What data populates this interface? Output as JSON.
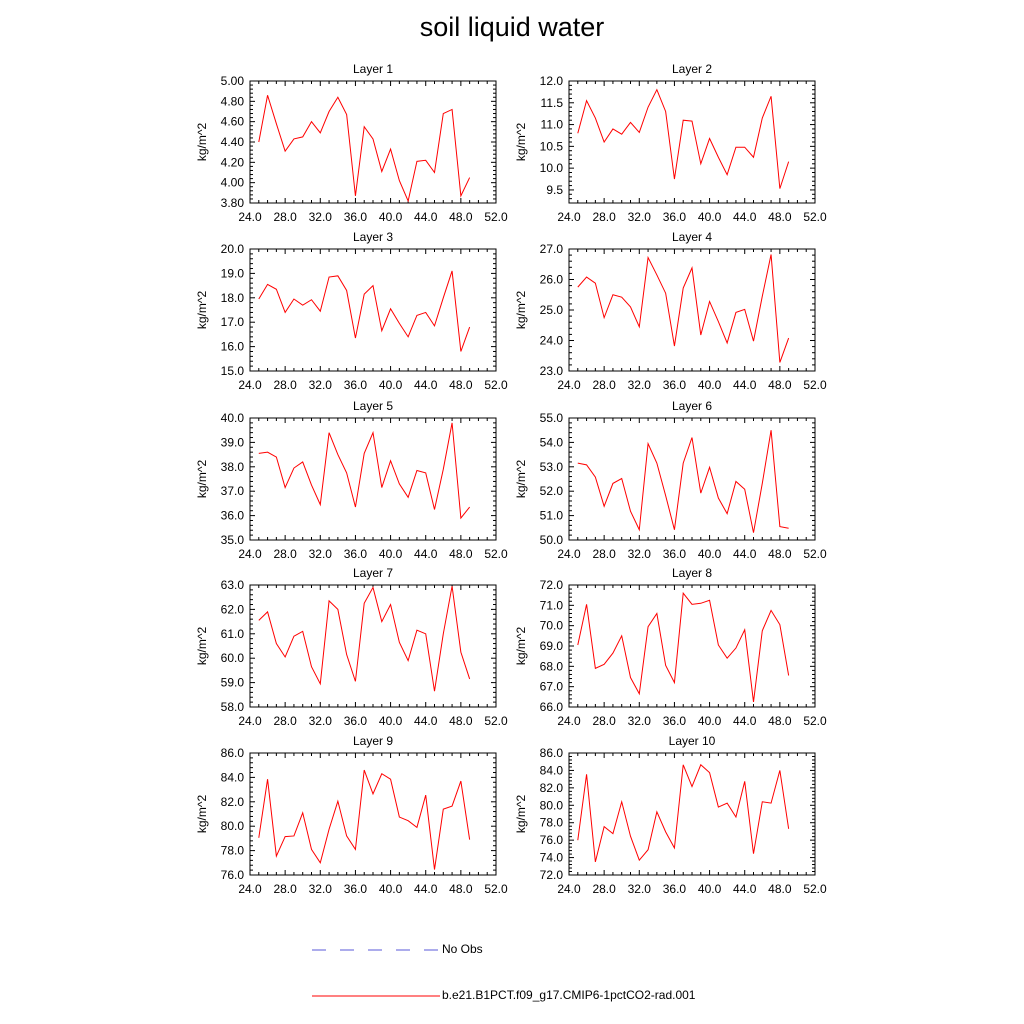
{
  "title": "soil liquid water",
  "chart_data": [
    {
      "type": "line",
      "title": "Layer 1",
      "ylabel": "kg/m^2",
      "xlim": [
        24,
        52
      ],
      "ylim": [
        3.8,
        5.0
      ],
      "yticks": [
        3.8,
        4.0,
        4.2,
        4.4,
        4.6,
        4.8,
        5.0
      ],
      "ydec": 2,
      "xticks": [
        24,
        28,
        32,
        36,
        40,
        44,
        48,
        52
      ],
      "x": [
        25,
        26,
        27,
        28,
        29,
        30,
        31,
        32,
        33,
        34,
        35,
        36,
        37,
        38,
        39,
        40,
        41,
        42,
        43,
        44,
        45,
        46,
        47,
        48,
        49
      ],
      "series": [
        {
          "name": "b.e21.B1PCT.f09_g17.CMIP6-1pctCO2-rad.001",
          "values": [
            4.4,
            4.86,
            4.58,
            4.31,
            4.43,
            4.45,
            4.6,
            4.49,
            4.7,
            4.84,
            4.67,
            3.87,
            4.55,
            4.43,
            4.11,
            4.33,
            4.02,
            3.82,
            4.21,
            4.22,
            4.1,
            4.68,
            4.72,
            3.87,
            4.05
          ]
        }
      ]
    },
    {
      "type": "line",
      "title": "Layer 2",
      "ylabel": "kg/m^2",
      "xlim": [
        24,
        52
      ],
      "ylim": [
        9.2,
        12.0
      ],
      "yticks": [
        9.5,
        10.0,
        10.5,
        11.0,
        11.5,
        12.0
      ],
      "ydec": 1,
      "xticks": [
        24,
        28,
        32,
        36,
        40,
        44,
        48,
        52
      ],
      "x": [
        25,
        26,
        27,
        28,
        29,
        30,
        31,
        32,
        33,
        34,
        35,
        36,
        37,
        38,
        39,
        40,
        41,
        42,
        43,
        44,
        45,
        46,
        47,
        48,
        49
      ],
      "series": [
        {
          "name": "b.e21.B1PCT.f09_g17.CMIP6-1pctCO2-rad.001",
          "values": [
            10.8,
            11.55,
            11.15,
            10.6,
            10.9,
            10.78,
            11.05,
            10.82,
            11.4,
            11.8,
            11.3,
            9.75,
            11.1,
            11.08,
            10.1,
            10.68,
            10.25,
            9.85,
            10.48,
            10.48,
            10.25,
            11.15,
            11.65,
            9.53,
            10.15
          ]
        }
      ]
    },
    {
      "type": "line",
      "title": "Layer 3",
      "ylabel": "kg/m^2",
      "xlim": [
        24,
        52
      ],
      "ylim": [
        15.0,
        20.0
      ],
      "yticks": [
        15.0,
        16.0,
        17.0,
        18.0,
        19.0,
        20.0
      ],
      "ydec": 1,
      "xticks": [
        24,
        28,
        32,
        36,
        40,
        44,
        48,
        52
      ],
      "x": [
        25,
        26,
        27,
        28,
        29,
        30,
        31,
        32,
        33,
        34,
        35,
        36,
        37,
        38,
        39,
        40,
        41,
        42,
        43,
        44,
        45,
        46,
        47,
        48,
        49
      ],
      "series": [
        {
          "name": "b.e21.B1PCT.f09_g17.CMIP6-1pctCO2-rad.001",
          "values": [
            17.95,
            18.55,
            18.35,
            17.4,
            17.95,
            17.7,
            17.92,
            17.45,
            18.85,
            18.9,
            18.3,
            16.35,
            18.15,
            18.5,
            16.65,
            17.55,
            16.95,
            16.4,
            17.28,
            17.4,
            16.85,
            18.0,
            19.1,
            15.8,
            16.8
          ]
        }
      ]
    },
    {
      "type": "line",
      "title": "Layer 4",
      "ylabel": "kg/m^2",
      "xlim": [
        24,
        52
      ],
      "ylim": [
        23.0,
        27.0
      ],
      "yticks": [
        23.0,
        24.0,
        25.0,
        26.0,
        27.0
      ],
      "ydec": 1,
      "xticks": [
        24,
        28,
        32,
        36,
        40,
        44,
        48,
        52
      ],
      "x": [
        25,
        26,
        27,
        28,
        29,
        30,
        31,
        32,
        33,
        34,
        35,
        36,
        37,
        38,
        39,
        40,
        41,
        42,
        43,
        44,
        45,
        46,
        47,
        48,
        49
      ],
      "series": [
        {
          "name": "b.e21.B1PCT.f09_g17.CMIP6-1pctCO2-rad.001",
          "values": [
            25.75,
            26.08,
            25.88,
            24.75,
            25.5,
            25.42,
            25.1,
            24.45,
            26.72,
            26.15,
            25.55,
            23.82,
            25.72,
            26.38,
            24.18,
            25.28,
            24.62,
            23.92,
            24.92,
            25.02,
            23.98,
            25.45,
            26.82,
            23.28,
            24.08
          ]
        }
      ]
    },
    {
      "type": "line",
      "title": "Layer 5",
      "ylabel": "kg/m^2",
      "xlim": [
        24,
        52
      ],
      "ylim": [
        35.0,
        40.0
      ],
      "yticks": [
        35.0,
        36.0,
        37.0,
        38.0,
        39.0,
        40.0
      ],
      "ydec": 1,
      "xticks": [
        24,
        28,
        32,
        36,
        40,
        44,
        48,
        52
      ],
      "x": [
        25,
        26,
        27,
        28,
        29,
        30,
        31,
        32,
        33,
        34,
        35,
        36,
        37,
        38,
        39,
        40,
        41,
        42,
        43,
        44,
        45,
        46,
        47,
        48,
        49
      ],
      "series": [
        {
          "name": "b.e21.B1PCT.f09_g17.CMIP6-1pctCO2-rad.001",
          "values": [
            38.55,
            38.6,
            38.4,
            37.15,
            37.95,
            38.2,
            37.25,
            36.45,
            39.4,
            38.5,
            37.75,
            36.35,
            38.55,
            39.4,
            37.15,
            38.25,
            37.3,
            36.75,
            37.85,
            37.75,
            36.25,
            37.9,
            39.8,
            35.9,
            36.35
          ]
        }
      ]
    },
    {
      "type": "line",
      "title": "Layer 6",
      "ylabel": "kg/m^2",
      "xlim": [
        24,
        52
      ],
      "ylim": [
        50.0,
        55.0
      ],
      "yticks": [
        50.0,
        51.0,
        52.0,
        53.0,
        54.0,
        55.0
      ],
      "ydec": 1,
      "xticks": [
        24,
        28,
        32,
        36,
        40,
        44,
        48,
        52
      ],
      "x": [
        25,
        26,
        27,
        28,
        29,
        30,
        31,
        32,
        33,
        34,
        35,
        36,
        37,
        38,
        39,
        40,
        41,
        42,
        43,
        44,
        45,
        46,
        47,
        48,
        49
      ],
      "series": [
        {
          "name": "b.e21.B1PCT.f09_g17.CMIP6-1pctCO2-rad.001",
          "values": [
            53.15,
            53.08,
            52.58,
            51.38,
            52.32,
            52.52,
            51.18,
            50.42,
            53.95,
            53.15,
            51.82,
            50.42,
            53.15,
            54.2,
            51.92,
            52.98,
            51.72,
            51.08,
            52.4,
            52.08,
            50.3,
            52.32,
            54.5,
            50.55,
            50.48
          ]
        }
      ]
    },
    {
      "type": "line",
      "title": "Layer 7",
      "ylabel": "kg/m^2",
      "xlim": [
        24,
        52
      ],
      "ylim": [
        58.0,
        63.0
      ],
      "yticks": [
        58.0,
        59.0,
        60.0,
        61.0,
        62.0,
        63.0
      ],
      "ydec": 1,
      "xticks": [
        24,
        28,
        32,
        36,
        40,
        44,
        48,
        52
      ],
      "x": [
        25,
        26,
        27,
        28,
        29,
        30,
        31,
        32,
        33,
        34,
        35,
        36,
        37,
        38,
        39,
        40,
        41,
        42,
        43,
        44,
        45,
        46,
        47,
        48,
        49
      ],
      "series": [
        {
          "name": "b.e21.B1PCT.f09_g17.CMIP6-1pctCO2-rad.001",
          "values": [
            61.55,
            61.9,
            60.6,
            60.05,
            60.9,
            61.1,
            59.65,
            58.95,
            62.35,
            62.0,
            60.15,
            59.05,
            62.25,
            62.9,
            61.5,
            62.2,
            60.65,
            59.9,
            61.15,
            61.0,
            58.65,
            61.0,
            62.95,
            60.25,
            59.15
          ]
        }
      ]
    },
    {
      "type": "line",
      "title": "Layer 8",
      "ylabel": "kg/m^2",
      "xlim": [
        24,
        52
      ],
      "ylim": [
        66.0,
        72.0
      ],
      "yticks": [
        66.0,
        67.0,
        68.0,
        69.0,
        70.0,
        71.0,
        72.0
      ],
      "ydec": 1,
      "xticks": [
        24,
        28,
        32,
        36,
        40,
        44,
        48,
        52
      ],
      "x": [
        25,
        26,
        27,
        28,
        29,
        30,
        31,
        32,
        33,
        34,
        35,
        36,
        37,
        38,
        39,
        40,
        41,
        42,
        43,
        44,
        45,
        46,
        47,
        48,
        49
      ],
      "series": [
        {
          "name": "b.e21.B1PCT.f09_g17.CMIP6-1pctCO2-rad.001",
          "values": [
            69.05,
            71.05,
            67.9,
            68.1,
            68.65,
            69.5,
            67.45,
            66.65,
            69.95,
            70.6,
            68.05,
            67.2,
            71.6,
            71.05,
            71.1,
            71.25,
            69.05,
            68.4,
            68.9,
            69.8,
            66.25,
            69.75,
            70.75,
            70.05,
            67.55
          ]
        }
      ]
    },
    {
      "type": "line",
      "title": "Layer 9",
      "ylabel": "kg/m^2",
      "xlim": [
        24,
        52
      ],
      "ylim": [
        76.0,
        86.0
      ],
      "yticks": [
        76.0,
        78.0,
        80.0,
        82.0,
        84.0,
        86.0
      ],
      "ydec": 1,
      "xticks": [
        24,
        28,
        32,
        36,
        40,
        44,
        48,
        52
      ],
      "x": [
        25,
        26,
        27,
        28,
        29,
        30,
        31,
        32,
        33,
        34,
        35,
        36,
        37,
        38,
        39,
        40,
        41,
        42,
        43,
        44,
        45,
        46,
        47,
        48,
        49
      ],
      "series": [
        {
          "name": "b.e21.B1PCT.f09_g17.CMIP6-1pctCO2-rad.001",
          "values": [
            79.05,
            83.85,
            77.55,
            79.15,
            79.2,
            81.1,
            78.1,
            77.0,
            79.75,
            82.05,
            79.2,
            78.1,
            84.6,
            82.65,
            84.3,
            83.85,
            80.75,
            80.45,
            79.9,
            82.55,
            76.45,
            81.4,
            81.65,
            83.7,
            78.9
          ]
        }
      ]
    },
    {
      "type": "line",
      "title": "Layer 10",
      "ylabel": "kg/m^2",
      "xlim": [
        24,
        52
      ],
      "ylim": [
        72.0,
        86.0
      ],
      "yticks": [
        72.0,
        74.0,
        76.0,
        78.0,
        80.0,
        82.0,
        84.0,
        86.0
      ],
      "ydec": 1,
      "xticks": [
        24,
        28,
        32,
        36,
        40,
        44,
        48,
        52
      ],
      "x": [
        25,
        26,
        27,
        28,
        29,
        30,
        31,
        32,
        33,
        34,
        35,
        36,
        37,
        38,
        39,
        40,
        41,
        42,
        43,
        44,
        45,
        46,
        47,
        48,
        49
      ],
      "series": [
        {
          "name": "b.e21.B1PCT.f09_g17.CMIP6-1pctCO2-rad.001",
          "values": [
            76.0,
            83.55,
            73.5,
            77.55,
            76.75,
            80.4,
            76.45,
            73.7,
            74.9,
            79.25,
            76.95,
            75.1,
            84.65,
            82.15,
            84.65,
            83.75,
            79.8,
            80.25,
            78.65,
            82.75,
            74.45,
            80.4,
            80.25,
            84.0,
            77.3
          ]
        }
      ]
    }
  ],
  "legend": {
    "placement": "bottom",
    "items": [
      {
        "label": "No Obs",
        "style": "dashed",
        "color": "#5a5ad8"
      },
      {
        "label": "b.e21.B1PCT.f09_g17.CMIP6-1pctCO2-rad.001",
        "style": "solid",
        "color": "#ff0000"
      }
    ]
  }
}
